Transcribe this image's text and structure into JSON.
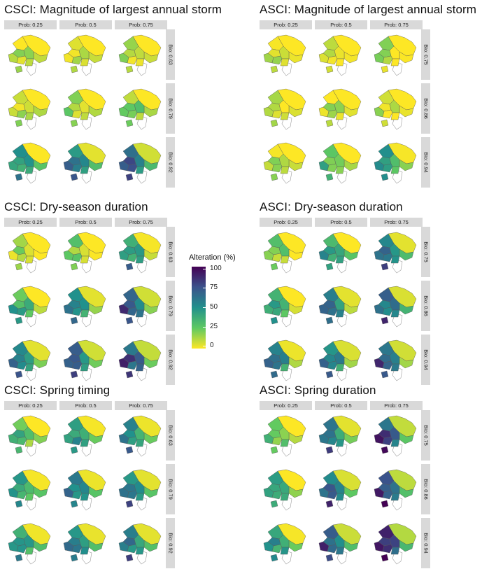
{
  "chart_data": {
    "type": "heatmap",
    "colorscale": {
      "title": "Alteration (%)",
      "ticks": [
        "100",
        "75",
        "50",
        "25",
        "0"
      ],
      "colors": [
        "#440154",
        "#3b528b",
        "#21918c",
        "#5ec962",
        "#fde725"
      ]
    },
    "panels": [
      {
        "title": "CSCI: Magnitude of largest annual storm",
        "columns": [
          "Prob: 0.25",
          "Prob: 0.5",
          "Prob: 0.75"
        ],
        "rows": [
          "Bio: 0.63",
          "Bio: 0.79",
          "Bio: 0.92"
        ],
        "alteration_by_row": [
          [
            8,
            10,
            14
          ],
          [
            10,
            14,
            22
          ],
          [
            42,
            55,
            65
          ]
        ]
      },
      {
        "title": "ASCI: Magnitude of largest annual storm",
        "columns": [
          "Prob: 0.25",
          "Prob: 0.5",
          "Prob: 0.75"
        ],
        "rows": [
          "Bio: 0.75",
          "Bio: 0.86",
          "Bio: 0.94"
        ],
        "alteration_by_row": [
          [
            6,
            8,
            10
          ],
          [
            8,
            10,
            12
          ],
          [
            10,
            28,
            45
          ]
        ]
      },
      {
        "title": "CSCI: Dry-season duration",
        "columns": [
          "Prob: 0.25",
          "Prob: 0.5",
          "Prob: 0.75"
        ],
        "rows": [
          "Bio: 0.63",
          "Bio: 0.79",
          "Bio: 0.92"
        ],
        "alteration_by_row": [
          [
            12,
            20,
            45
          ],
          [
            35,
            55,
            65
          ],
          [
            55,
            65,
            72
          ]
        ]
      },
      {
        "title": "ASCI: Dry-season duration",
        "columns": [
          "Prob: 0.25",
          "Prob: 0.5",
          "Prob: 0.75"
        ],
        "rows": [
          "Bio: 0.75",
          "Bio: 0.86",
          "Bio: 0.94"
        ],
        "alteration_by_row": [
          [
            20,
            40,
            55
          ],
          [
            40,
            55,
            60
          ],
          [
            50,
            60,
            65
          ]
        ]
      },
      {
        "title": "CSCI: Spring timing",
        "columns": [
          "Prob: 0.25",
          "Prob: 0.5",
          "Prob: 0.75"
        ],
        "rows": [
          "Bio: 0.63",
          "Bio: 0.79",
          "Bio: 0.92"
        ],
        "alteration_by_row": [
          [
            30,
            45,
            50
          ],
          [
            45,
            50,
            55
          ],
          [
            48,
            52,
            55
          ]
        ]
      },
      {
        "title": "ASCI: Spring duration",
        "columns": [
          "Prob: 0.25",
          "Prob: 0.5",
          "Prob: 0.75"
        ],
        "rows": [
          "Bio: 0.75",
          "Bio: 0.86",
          "Bio: 0.94"
        ],
        "alteration_by_row": [
          [
            25,
            55,
            72
          ],
          [
            35,
            60,
            75
          ],
          [
            45,
            68,
            80
          ]
        ]
      }
    ]
  }
}
